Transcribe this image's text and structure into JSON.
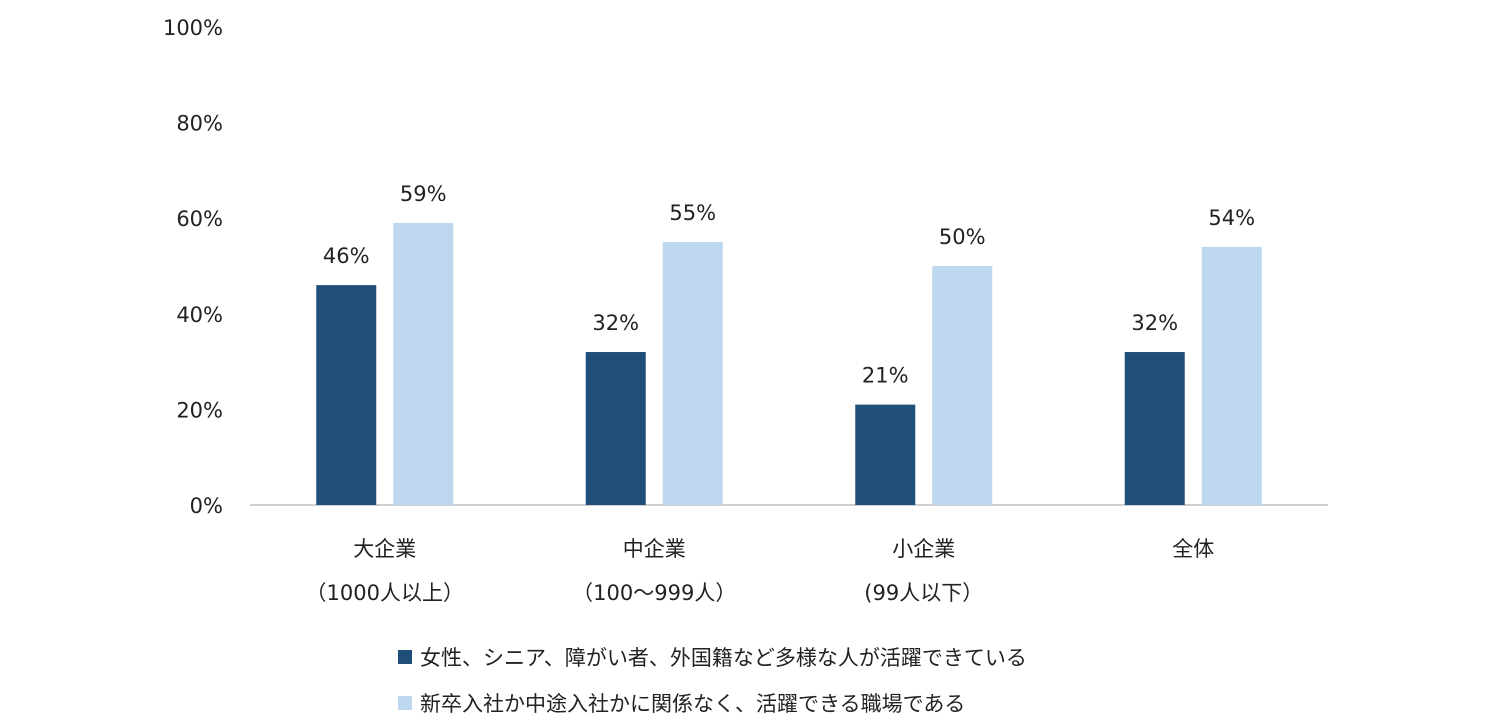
{
  "chart_data": {
    "type": "bar",
    "categories": [
      [
        "大企業",
        "（1000人以上）"
      ],
      [
        "中企業",
        "（100〜999人）"
      ],
      [
        "小企業",
        "(99人以下）"
      ],
      [
        "全体",
        ""
      ]
    ],
    "series": [
      {
        "name": "女性、シニア、障がい者、外国籍など多様な人が活躍できている",
        "values": [
          46,
          32,
          21,
          32
        ],
        "color": "#1f4e79"
      },
      {
        "name": "新卒入社か中途入社かに関係なく、活躍できる職場である",
        "values": [
          59,
          55,
          50,
          54
        ],
        "color": "#bdd7ee"
      }
    ],
    "data_labels": [
      [
        "46%",
        "32%",
        "21%",
        "32%"
      ],
      [
        "59%",
        "55%",
        "50%",
        "54%"
      ]
    ],
    "yticks": [
      "0%",
      "20%",
      "40%",
      "60%",
      "80%",
      "100%"
    ],
    "ylim": [
      0,
      100
    ],
    "grid": false,
    "legend_position": "bottom"
  }
}
